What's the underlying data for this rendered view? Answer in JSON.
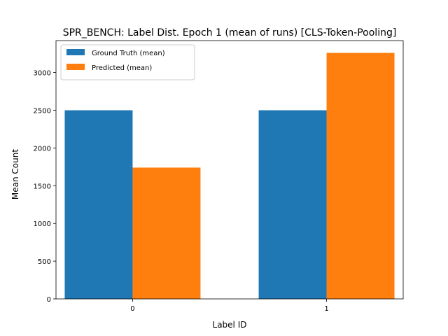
{
  "chart_data": {
    "type": "bar",
    "title": "SPR_BENCH: Label Dist. Epoch 1 (mean of runs) [CLS-Token-Pooling]",
    "xlabel": "Label ID",
    "ylabel": "Mean Count",
    "categories": [
      "0",
      "1"
    ],
    "series": [
      {
        "name": "Ground Truth (mean)",
        "values": [
          2500,
          2500
        ],
        "color": "#1f77b4"
      },
      {
        "name": "Predicted (mean)",
        "values": [
          1740,
          3260
        ],
        "color": "#ff7f0e"
      }
    ],
    "ylim": [
      0,
      3423
    ],
    "yticks": [
      0,
      500,
      1000,
      1500,
      2000,
      2500,
      3000
    ],
    "grid": false,
    "legend_position": "top-left"
  }
}
